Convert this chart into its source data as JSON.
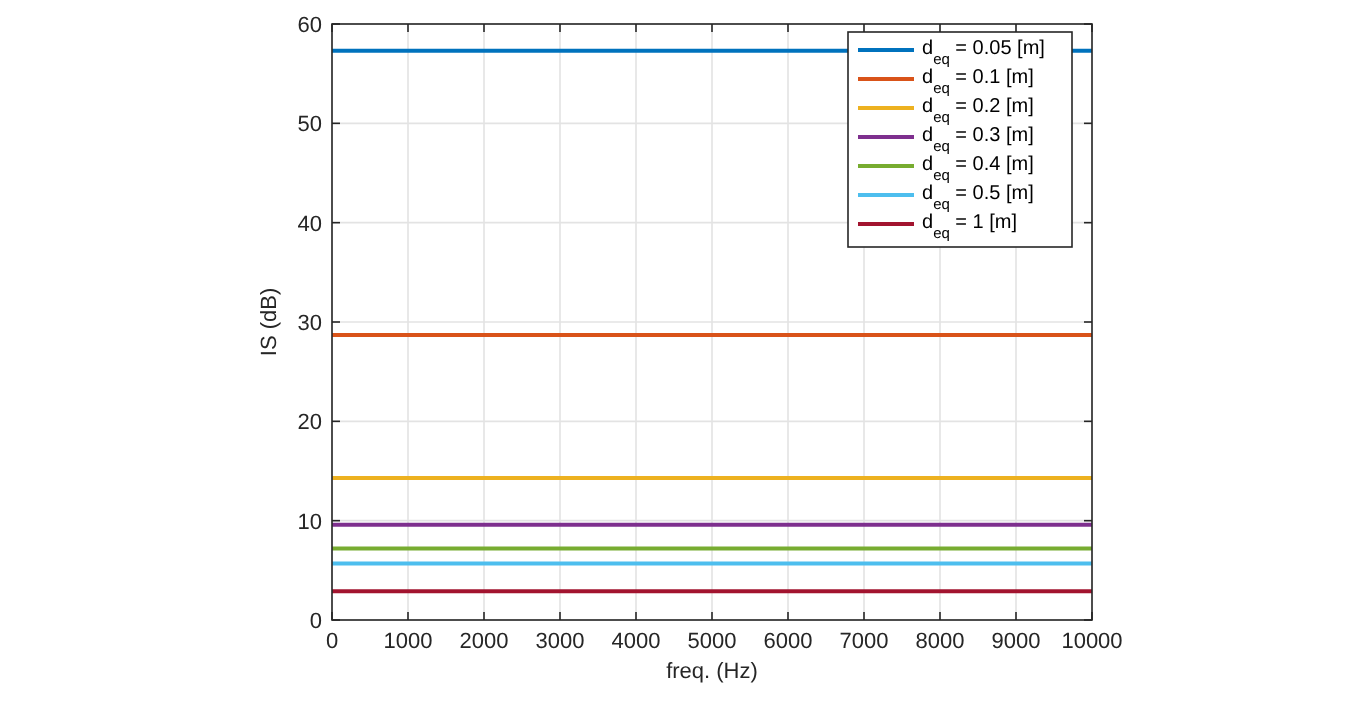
{
  "chart_data": {
    "type": "line",
    "xlabel": "freq. (Hz)",
    "ylabel": "IS (dB)",
    "x": [
      0,
      10000
    ],
    "xlim": [
      0,
      10000
    ],
    "xticks": [
      0,
      1000,
      2000,
      3000,
      4000,
      5000,
      6000,
      7000,
      8000,
      9000,
      10000
    ],
    "ylim": [
      0,
      60
    ],
    "yticks": [
      0,
      10,
      20,
      30,
      40,
      50,
      60
    ],
    "grid": true,
    "legend": "top right",
    "line_style": "solid",
    "marker": "none",
    "series": [
      {
        "name": "d$_{eq}$ = 0.05 [m]",
        "color": "#0072bd",
        "values": [
          57.3,
          57.3
        ]
      },
      {
        "name": "d$_{eq}$ = 0.1 [m]",
        "color": "#d95319",
        "values": [
          28.7,
          28.7
        ]
      },
      {
        "name": "d$_{eq}$ = 0.2 [m]",
        "color": "#edb120",
        "values": [
          14.3,
          14.3
        ]
      },
      {
        "name": "d$_{eq}$ = 0.3 [m]",
        "color": "#7e2f8e",
        "values": [
          9.6,
          9.6
        ]
      },
      {
        "name": "d$_{eq}$ = 0.4 [m]",
        "color": "#77ac30",
        "values": [
          7.2,
          7.2
        ]
      },
      {
        "name": "d$_{eq}$ = 0.5 [m]",
        "color": "#4dbeee",
        "values": [
          5.7,
          5.7
        ]
      },
      {
        "name": "d$_{eq}$ = 1 [m]",
        "color": "#a2142f",
        "values": [
          2.9,
          2.9
        ]
      }
    ]
  }
}
